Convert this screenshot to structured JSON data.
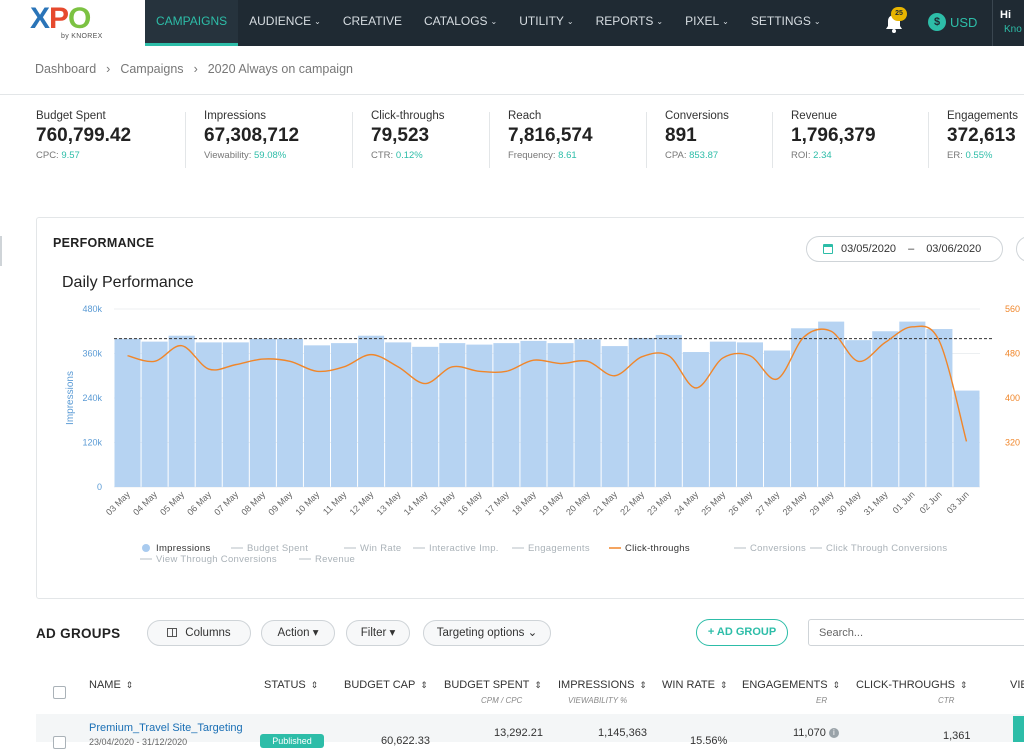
{
  "logo": {
    "sub": "by KNOREX"
  },
  "nav": [
    {
      "label": "CAMPAIGNS",
      "active": true,
      "dropdown": false
    },
    {
      "label": "AUDIENCE",
      "active": false,
      "dropdown": true
    },
    {
      "label": "CREATIVE",
      "active": false,
      "dropdown": false
    },
    {
      "label": "CATALOGS",
      "active": false,
      "dropdown": true
    },
    {
      "label": "UTILITY",
      "active": false,
      "dropdown": true
    },
    {
      "label": "REPORTS",
      "active": false,
      "dropdown": true
    },
    {
      "label": "PIXEL",
      "active": false,
      "dropdown": true
    },
    {
      "label": "SETTINGS",
      "active": false,
      "dropdown": true
    }
  ],
  "topright": {
    "notifications": "25",
    "currency_symbol": "$",
    "currency": "USD",
    "user_greeting": "Hi",
    "user_name": "Kno"
  },
  "breadcrumb": [
    "Dashboard",
    "Campaigns",
    "2020 Always on campaign"
  ],
  "stats": [
    {
      "label": "Budget Spent",
      "value": "760,799.42",
      "sub_label": "CPC:",
      "sub_value": "9.57"
    },
    {
      "label": "Impressions",
      "value": "67,308,712",
      "sub_label": "Viewability:",
      "sub_value": "59.08%"
    },
    {
      "label": "Click-throughs",
      "value": "79,523",
      "sub_label": "CTR:",
      "sub_value": "0.12%"
    },
    {
      "label": "Reach",
      "value": "7,816,574",
      "sub_label": "Frequency:",
      "sub_value": "8.61"
    },
    {
      "label": "Conversions",
      "value": "891",
      "sub_label": "CPA:",
      "sub_value": "853.87"
    },
    {
      "label": "Revenue",
      "value": "1,796,379",
      "sub_label": "ROI:",
      "sub_value": "2.34"
    },
    {
      "label": "Engagements",
      "value": "372,613",
      "sub_label": "ER:",
      "sub_value": "0.55%"
    }
  ],
  "performance": {
    "title": "PERFORMANCE",
    "date_from": "03/05/2020",
    "date_sep": "–",
    "date_to": "03/06/2020",
    "chart_title": "Daily Performance"
  },
  "chart_data": {
    "type": "bar",
    "title": "Daily Performance",
    "ylabel": "Impressions",
    "ylim": [
      0,
      480000
    ],
    "y_ticks": [
      "0",
      "120k",
      "240k",
      "360k",
      "480k"
    ],
    "y2lim": [
      240,
      560
    ],
    "y2_ticks": [
      "320",
      "400",
      "480",
      "560"
    ],
    "reference_line": 400000,
    "categories": [
      "03 May",
      "04 May",
      "05 May",
      "06 May",
      "07 May",
      "08 May",
      "09 May",
      "10 May",
      "11 May",
      "12 May",
      "13 May",
      "14 May",
      "15 May",
      "16 May",
      "17 May",
      "18 May",
      "19 May",
      "20 May",
      "21 May",
      "22 May",
      "23 May",
      "24 May",
      "25 May",
      "26 May",
      "27 May",
      "28 May",
      "29 May",
      "30 May",
      "31 May",
      "01 Jun",
      "02 Jun",
      "03 Jun"
    ],
    "series": [
      {
        "name": "Impressions",
        "type": "bar",
        "axis": "left",
        "color": "#b6d3f2",
        "values": [
          400000,
          392000,
          408000,
          390000,
          390000,
          400000,
          400000,
          382000,
          388000,
          408000,
          390000,
          378000,
          388000,
          384000,
          388000,
          394000,
          388000,
          398000,
          380000,
          402000,
          410000,
          364000,
          392000,
          390000,
          368000,
          428000,
          446000,
          396000,
          420000,
          446000,
          426000,
          260000
        ]
      },
      {
        "name": "Click-throughs",
        "type": "line",
        "axis": "right",
        "color": "#f0862a",
        "values": [
          476,
          466,
          494,
          452,
          460,
          470,
          466,
          448,
          456,
          478,
          456,
          426,
          456,
          448,
          448,
          468,
          462,
          466,
          440,
          474,
          476,
          418,
          472,
          476,
          434,
          510,
          520,
          466,
          500,
          528,
          502,
          322
        ]
      }
    ],
    "legend": [
      {
        "name": "Impressions",
        "active": true,
        "marker": "dot"
      },
      {
        "name": "Budget Spent",
        "active": false,
        "marker": "line"
      },
      {
        "name": "Win Rate",
        "active": false,
        "marker": "line"
      },
      {
        "name": "Interactive Imp.",
        "active": false,
        "marker": "line"
      },
      {
        "name": "Engagements",
        "active": false,
        "marker": "line"
      },
      {
        "name": "Click-throughs",
        "active": true,
        "marker": "line"
      },
      {
        "name": "Conversions",
        "active": false,
        "marker": "line"
      },
      {
        "name": "Click Through Conversions",
        "active": false,
        "marker": "line"
      },
      {
        "name": "View Through Conversions",
        "active": false,
        "marker": "line"
      },
      {
        "name": "Revenue",
        "active": false,
        "marker": "line"
      }
    ],
    "grid": true
  },
  "adgroups": {
    "title": "AD GROUPS",
    "columns_btn": "Columns",
    "action_btn": "Action ▾",
    "filter_btn": "Filter ▾",
    "targeting_btn": "Targeting options ⌄",
    "add_btn": "+ AD GROUP",
    "search_placeholder": "Search...",
    "headers": {
      "name": "NAME",
      "status": "STATUS",
      "budget_cap": "BUDGET CAP",
      "budget_spent": "BUDGET SPENT",
      "budget_spent_sub": "CPM / CPC",
      "impressions": "IMPRESSIONS",
      "impressions_sub": "VIEWABILITY %",
      "win_rate": "WIN RATE",
      "engagements": "ENGAGEMENTS",
      "engagements_sub": "ER",
      "clicks": "CLICK-THROUGHS",
      "clicks_sub": "CTR",
      "more": "VIE"
    },
    "row": {
      "name": "Premium_Travel Site_Targeting",
      "dates": "23/04/2020 - 31/12/2020",
      "status": "Published",
      "budget_cap": "60,622.33",
      "budget_spent": "13,292.21",
      "impressions": "1,145,363",
      "win_rate": "15.56%",
      "engagements": "11,070",
      "clicks": "1,361"
    }
  }
}
